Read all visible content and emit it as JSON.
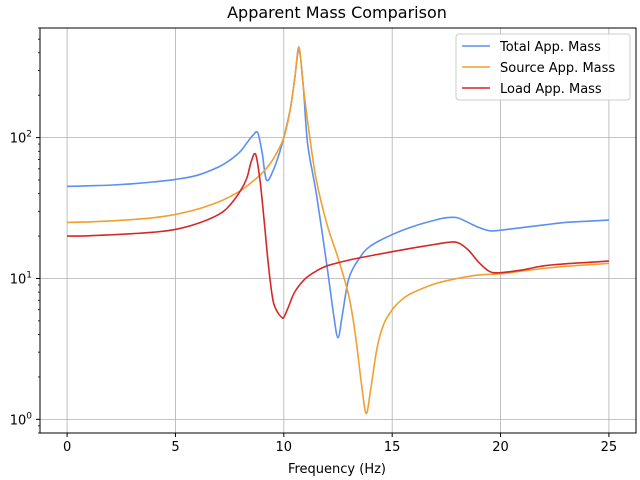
{
  "chart_data": {
    "type": "line",
    "title": "Apparent Mass Comparison",
    "xlabel": "Frequency (Hz)",
    "ylabel": "",
    "xlim": [
      -1.25,
      26.25
    ],
    "ylim": [
      0.8,
      600
    ],
    "yscale": "log",
    "grid": true,
    "legend_position": "top-right",
    "x_ticks": [
      0,
      5,
      10,
      15,
      20,
      25
    ],
    "x_tick_labels": [
      "0",
      "5",
      "10",
      "15",
      "20",
      "25"
    ],
    "y_ticks": [
      1,
      10,
      100
    ],
    "y_tick_labels": [
      "10^0",
      "10^1",
      "10^2"
    ],
    "series": [
      {
        "name": "Total App. Mass",
        "color": "#5b8ff0",
        "x": [
          0,
          1,
          2,
          3,
          4,
          5,
          6,
          7,
          7.5,
          8,
          8.3,
          8.6,
          8.8,
          9.0,
          9.2,
          9.5,
          9.8,
          10.0,
          10.3,
          10.5,
          10.7,
          10.9,
          11.1,
          11.5,
          12.0,
          12.3,
          12.5,
          12.7,
          13.0,
          13.5,
          14.0,
          15.0,
          16.0,
          17.0,
          17.5,
          18.0,
          18.5,
          19.0,
          19.5,
          20.0,
          21.0,
          22.0,
          23.0,
          24.0,
          25.0
        ],
        "values": [
          45,
          45.5,
          46,
          47,
          48.5,
          50.5,
          54,
          62,
          69,
          80,
          92,
          105,
          108,
          78,
          50,
          58,
          78,
          100,
          160,
          260,
          420,
          230,
          90,
          40,
          12,
          5.5,
          3.8,
          5.5,
          10,
          14,
          17,
          20.5,
          23.5,
          26,
          27,
          27,
          25,
          23,
          21.8,
          22,
          23,
          24,
          25,
          25.5,
          26
        ]
      },
      {
        "name": "Source App. Mass",
        "color": "#f0a030",
        "x": [
          0,
          1,
          2,
          3,
          4,
          5,
          6,
          7,
          7.5,
          8,
          8.5,
          9.0,
          9.5,
          10.0,
          10.3,
          10.5,
          10.7,
          10.9,
          11.2,
          11.5,
          12.0,
          12.5,
          13.0,
          13.3,
          13.6,
          13.8,
          14.0,
          14.3,
          14.6,
          15.0,
          15.5,
          16.0,
          17.0,
          18.0,
          19.0,
          20.0,
          21.0,
          22.0,
          23.0,
          24.0,
          25.0
        ],
        "values": [
          25,
          25.2,
          25.6,
          26.2,
          27,
          28.5,
          31,
          35,
          38,
          42,
          48,
          56,
          70,
          100,
          160,
          260,
          440,
          230,
          100,
          50,
          24,
          14,
          7.5,
          4,
          1.7,
          1.1,
          1.6,
          3.2,
          4.7,
          6,
          7.2,
          8,
          9.2,
          10,
          10.6,
          10.8,
          11.3,
          11.8,
          12.2,
          12.5,
          12.8
        ]
      },
      {
        "name": "Load App. Mass",
        "color": "#d62728",
        "x": [
          0,
          1,
          2,
          3,
          4,
          5,
          6,
          7,
          7.5,
          8,
          8.3,
          8.5,
          8.7,
          8.9,
          9.1,
          9.3,
          9.5,
          9.7,
          9.9,
          10.0,
          10.2,
          10.5,
          11.0,
          11.5,
          12.0,
          13.0,
          14.0,
          15.0,
          16.0,
          17.0,
          17.5,
          18.0,
          18.5,
          19.0,
          19.5,
          20.0,
          21.0,
          22.0,
          23.0,
          24.0,
          25.0
        ],
        "values": [
          20,
          20.1,
          20.4,
          20.8,
          21.3,
          22.3,
          24.5,
          28.5,
          33,
          42,
          52,
          68,
          76,
          50,
          25,
          12,
          7,
          5.8,
          5.3,
          5.3,
          6.2,
          8,
          10,
          11.3,
          12.3,
          13.5,
          14.5,
          15.5,
          16.5,
          17.5,
          18,
          18,
          16,
          13,
          11.2,
          11,
          11.5,
          12.3,
          12.7,
          13,
          13.3
        ]
      }
    ]
  }
}
